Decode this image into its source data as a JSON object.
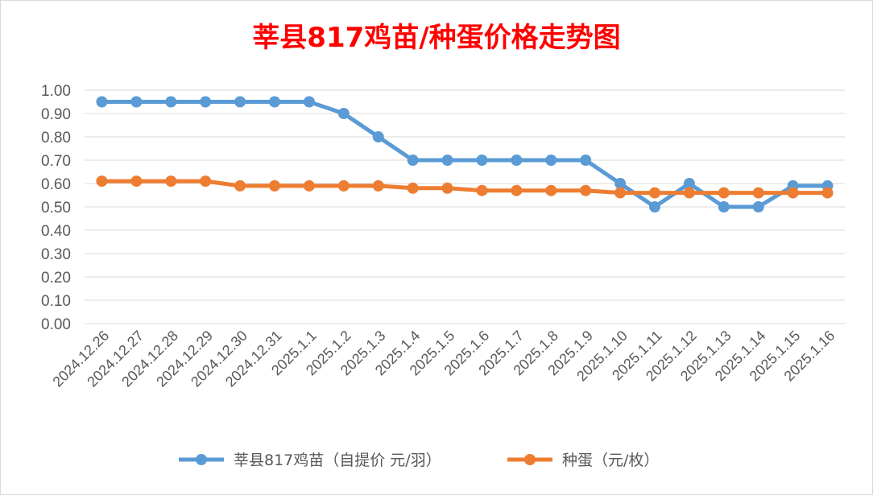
{
  "chart_data": {
    "type": "line",
    "title": "莘县817鸡苗/种蛋价格走势图",
    "categories": [
      "2024.12.26",
      "2024.12.27",
      "2024.12.28",
      "2024.12.29",
      "2024.12.30",
      "2024.12.31",
      "2025.1.1",
      "2025.1.2",
      "2025.1.3",
      "2025.1.4",
      "2025.1.5",
      "2025.1.6",
      "2025.1.7",
      "2025.1.8",
      "2025.1.9",
      "2025.1.10",
      "2025.1.11",
      "2025.1.12",
      "2025.1.13",
      "2025.1.14",
      "2025.1.15",
      "2025.1.16"
    ],
    "yticks": [
      "0.00",
      "0.10",
      "0.20",
      "0.30",
      "0.40",
      "0.50",
      "0.60",
      "0.70",
      "0.80",
      "0.90",
      "1.00"
    ],
    "ylim": [
      0,
      1
    ],
    "grid": true,
    "legend_position": "bottom",
    "series": [
      {
        "name": "莘县817鸡苗（自提价 元/羽）",
        "color": "#5b9bd5",
        "values": [
          0.95,
          0.95,
          0.95,
          0.95,
          0.95,
          0.95,
          0.95,
          0.9,
          0.8,
          0.7,
          0.7,
          0.7,
          0.7,
          0.7,
          0.7,
          0.6,
          0.5,
          0.6,
          0.5,
          0.5,
          0.59,
          0.59
        ]
      },
      {
        "name": "种蛋（元/枚）",
        "color": "#ed7d31",
        "values": [
          0.61,
          0.61,
          0.61,
          0.61,
          0.59,
          0.59,
          0.59,
          0.59,
          0.59,
          0.58,
          0.58,
          0.57,
          0.57,
          0.57,
          0.57,
          0.56,
          0.56,
          0.56,
          0.56,
          0.56,
          0.56,
          0.56
        ]
      }
    ]
  }
}
